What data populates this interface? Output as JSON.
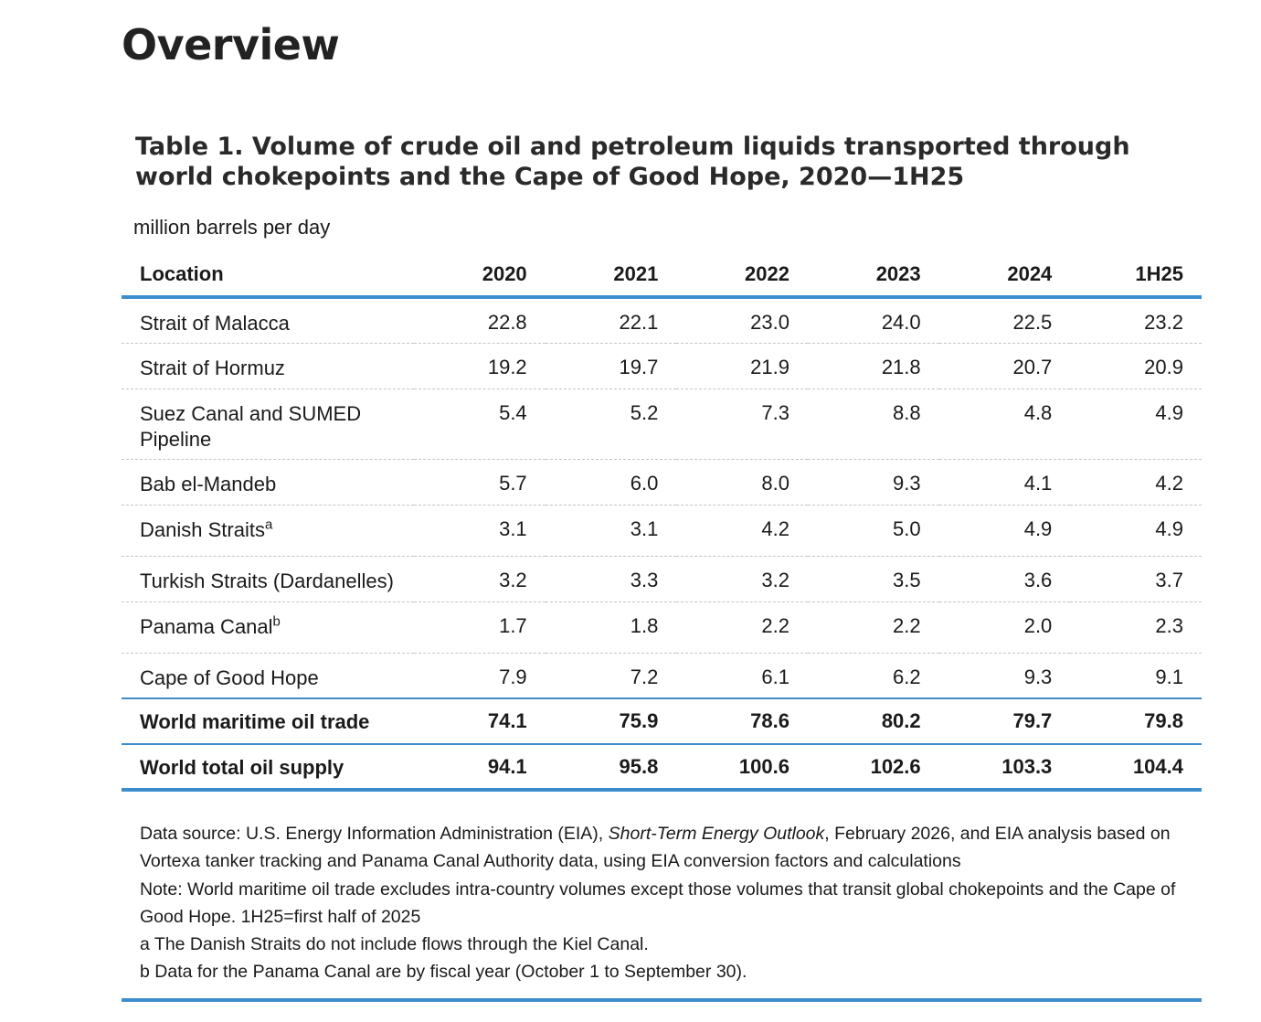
{
  "page": {
    "heading": "Overview"
  },
  "table": {
    "title": "Table 1. Volume of crude oil and petroleum liquids transported through world chokepoints and the Cape of Good Hope, 2020—1H25",
    "units": "million barrels per day",
    "columns": [
      "Location",
      "2020",
      "2021",
      "2022",
      "2023",
      "2024",
      "1H25"
    ],
    "rows": [
      {
        "label": "Strait of Malacca",
        "sup": "",
        "values": [
          "22.8",
          "22.1",
          "23.0",
          "24.0",
          "22.5",
          "23.2"
        ]
      },
      {
        "label": "Strait of Hormuz",
        "sup": "",
        "values": [
          "19.2",
          "19.7",
          "21.9",
          "21.8",
          "20.7",
          "20.9"
        ]
      },
      {
        "label": "Suez Canal and SUMED Pipeline",
        "sup": "",
        "values": [
          "5.4",
          "5.2",
          "7.3",
          "8.8",
          "4.8",
          "4.9"
        ]
      },
      {
        "label": "Bab el-Mandeb",
        "sup": "",
        "values": [
          "5.7",
          "6.0",
          "8.0",
          "9.3",
          "4.1",
          "4.2"
        ]
      },
      {
        "label": "Danish Straits",
        "sup": "a",
        "values": [
          "3.1",
          "3.1",
          "4.2",
          "5.0",
          "4.9",
          "4.9"
        ]
      },
      {
        "label": "Turkish Straits (Dardanelles)",
        "sup": "",
        "values": [
          "3.2",
          "3.3",
          "3.2",
          "3.5",
          "3.6",
          "3.7"
        ]
      },
      {
        "label": "Panama Canal",
        "sup": "b",
        "values": [
          "1.7",
          "1.8",
          "2.2",
          "2.2",
          "2.0",
          "2.3"
        ]
      },
      {
        "label": "Cape of Good Hope",
        "sup": "",
        "values": [
          "7.9",
          "7.2",
          "6.1",
          "6.2",
          "9.3",
          "9.1"
        ]
      }
    ],
    "totals": [
      {
        "label": "World maritime oil trade",
        "values": [
          "74.1",
          "75.9",
          "78.6",
          "80.2",
          "79.7",
          "79.8"
        ]
      },
      {
        "label": "World total oil supply",
        "values": [
          "94.1",
          "95.8",
          "100.6",
          "102.6",
          "103.3",
          "104.4"
        ]
      }
    ]
  },
  "notes": {
    "source_prefix": "Data source: U.S. Energy Information Administration (EIA), ",
    "source_italic": "Short-Term Energy Outlook",
    "source_suffix": ", February 2026, and EIA analysis based on Vortexa tanker tracking and Panama Canal Authority data, using EIA conversion factors and calculations",
    "note": "Note: World maritime oil trade excludes intra-country volumes except those volumes that transit global chokepoints and the Cape of Good Hope. 1H25=first half of 2025",
    "footnote_a": "a The Danish Straits do not include flows through the Kiel Canal.",
    "footnote_b": "b Data for the Panama Canal are by fiscal year (October 1 to September 30)."
  },
  "colors": {
    "accent_rule": "#3d8ccc",
    "dashed_rule": "#c4c4c4"
  }
}
